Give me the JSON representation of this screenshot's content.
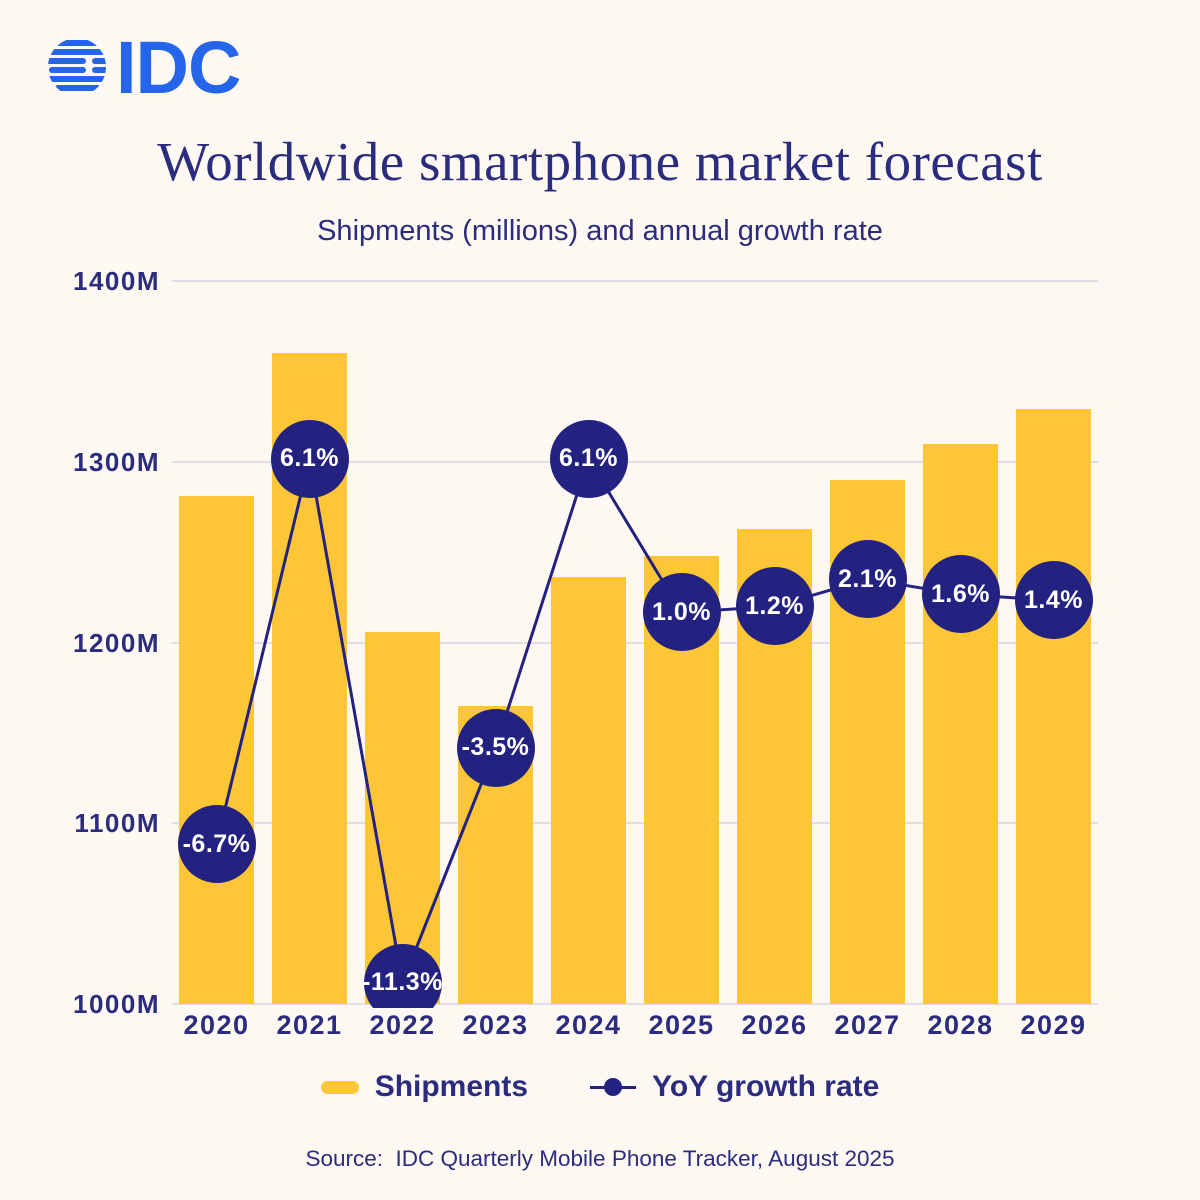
{
  "brand": {
    "logo_text": "IDC",
    "logo_color": "#2565EA",
    "logo_icon": "striped-globe-icon"
  },
  "header": {
    "title": "Worldwide smartphone market forecast",
    "subtitle": "Shipments (millions) and annual growth rate"
  },
  "chart_data": {
    "type": "bar",
    "title": "Worldwide smartphone market forecast",
    "subtitle": "Shipments (millions) and annual growth rate",
    "categories": [
      "2020",
      "2021",
      "2022",
      "2023",
      "2024",
      "2025",
      "2026",
      "2027",
      "2028",
      "2029"
    ],
    "series": [
      {
        "name": "Shipments",
        "type": "bar",
        "unit": "millions",
        "color": "#FCC637",
        "values": [
          1281,
          1360,
          1206,
          1165,
          1236,
          1248,
          1263,
          1290,
          1310,
          1329
        ]
      },
      {
        "name": "YoY growth rate",
        "type": "line",
        "unit": "%",
        "color": "#232280",
        "values": [
          -6.7,
          6.1,
          -11.3,
          -3.5,
          6.1,
          1.0,
          1.2,
          2.1,
          1.6,
          1.4
        ],
        "labels": [
          "-6.7%",
          "6.1%",
          "-11.3%",
          "-3.5%",
          "6.1%",
          "1.0%",
          "1.2%",
          "2.1%",
          "1.6%",
          "1.4%"
        ]
      }
    ],
    "y_axis": {
      "min": 1000,
      "max": 1400,
      "tick_values": [
        1000,
        1100,
        1200,
        1300,
        1400
      ],
      "tick_labels": [
        "1000M",
        "1100M",
        "1200M",
        "1300M",
        "1400M"
      ]
    },
    "secondary_y_axis": {
      "min": -12,
      "max": 12,
      "visible": false
    },
    "grid": true,
    "legend_position": "bottom"
  },
  "legend": {
    "shipments_label": "Shipments",
    "growth_label": "YoY growth rate"
  },
  "source": {
    "text": "Source:  IDC Quarterly Mobile Phone Tracker, August 2025"
  },
  "colors": {
    "background": "#FDF8F1",
    "bar_yellow": "#FCC637",
    "marker_navy": "#232280",
    "text_navy": "#2B2C7E",
    "gridline": "#DEDDE9",
    "logo_blue": "#2565EA"
  }
}
